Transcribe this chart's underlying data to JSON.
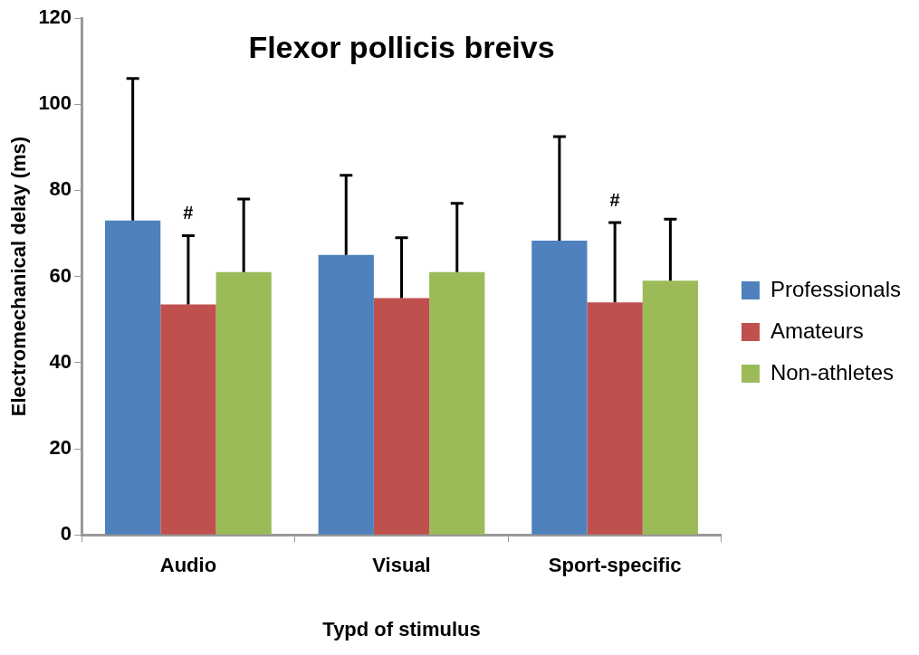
{
  "chart_data": {
    "type": "bar",
    "title": "Flexor pollicis breivs",
    "xlabel": "Typd of stimulus",
    "ylabel": "Electromechanical delay (ms)",
    "categories": [
      "Audio",
      "Visual",
      "Sport-specific"
    ],
    "series": [
      {
        "name": "Professionals",
        "color": "#4f81bd",
        "values": [
          73,
          65,
          68.3
        ],
        "errors": [
          [
            73,
            106
          ],
          [
            65,
            83.5
          ],
          [
            68.3,
            92.5
          ]
        ]
      },
      {
        "name": "Amateurs",
        "color": "#c0504d",
        "values": [
          53.5,
          55,
          54
        ],
        "errors": [
          [
            53.5,
            69.5
          ],
          [
            55,
            69
          ],
          [
            54,
            72.5
          ]
        ]
      },
      {
        "name": "Non-athletes",
        "color": "#9bbb59",
        "values": [
          61,
          61,
          59
        ],
        "errors": [
          [
            61,
            78
          ],
          [
            61,
            77
          ],
          [
            59,
            73.3
          ]
        ]
      }
    ],
    "annotations": [
      "#",
      "#"
    ],
    "ylim": [
      0,
      120
    ],
    "yticks": [
      0,
      20,
      40,
      60,
      80,
      100,
      120
    ],
    "grid": false,
    "legend": "right"
  }
}
